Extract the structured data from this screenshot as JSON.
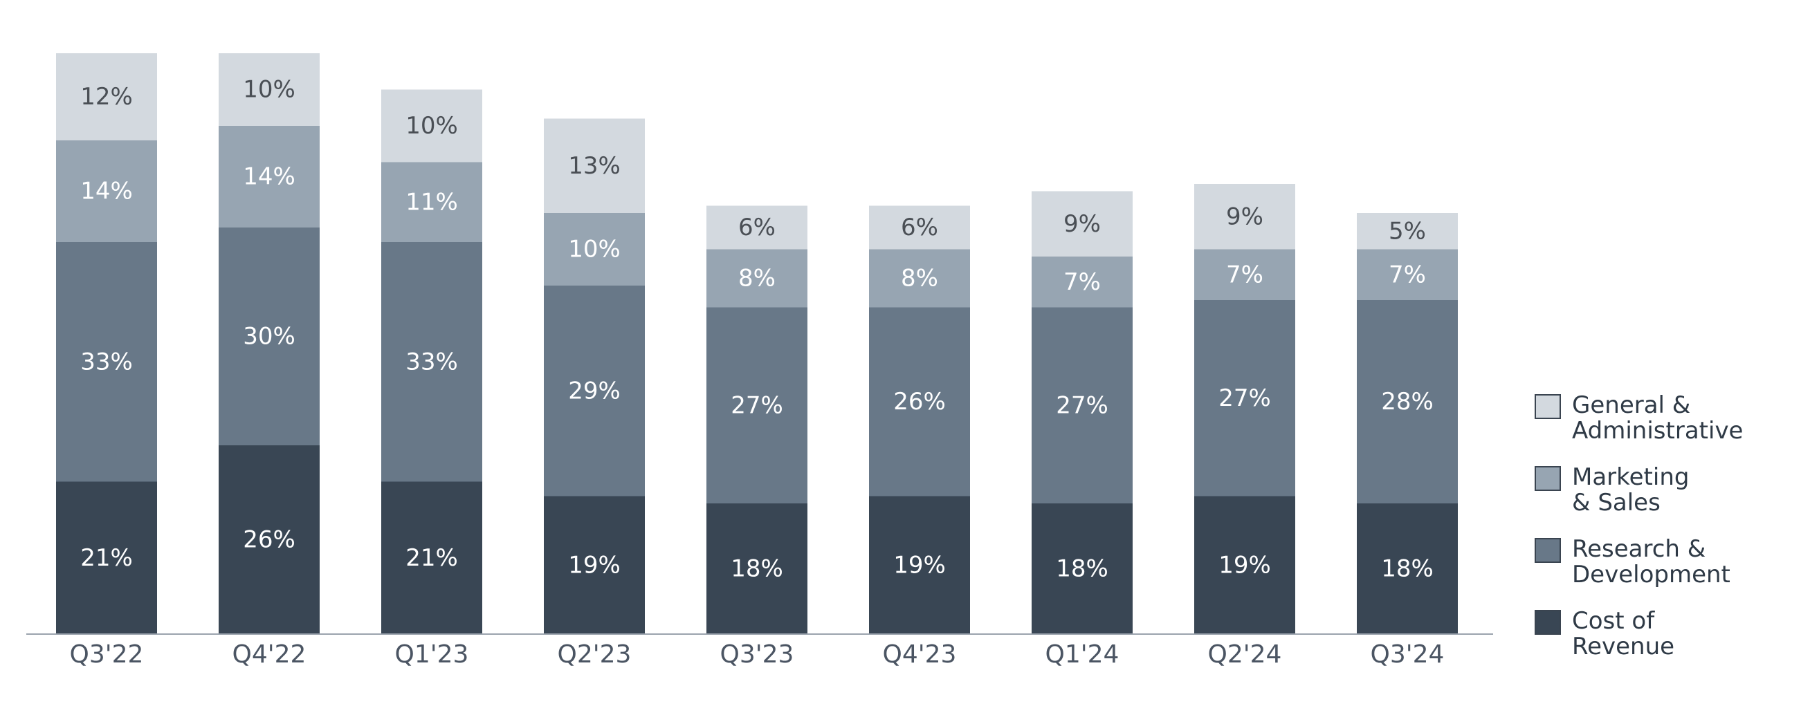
{
  "chart_data": {
    "type": "bar",
    "stacked": true,
    "categories": [
      "Q3'22",
      "Q4'22",
      "Q1'23",
      "Q2'23",
      "Q3'23",
      "Q4'23",
      "Q1'24",
      "Q2'24",
      "Q3'24"
    ],
    "series": [
      {
        "name": "Cost of Revenue",
        "values": [
          21,
          26,
          21,
          19,
          18,
          19,
          18,
          19,
          18
        ],
        "labels": [
          "21%",
          "26%",
          "21%",
          "19%",
          "18%",
          "19%",
          "18%",
          "19%",
          "18%"
        ],
        "color": "#394654",
        "text_color": "#ffffff"
      },
      {
        "name": "Research & Development",
        "values": [
          33,
          30,
          33,
          29,
          27,
          26,
          27,
          27,
          28
        ],
        "labels": [
          "33%",
          "30%",
          "33%",
          "29%",
          "27%",
          "26%",
          "27%",
          "27%",
          "28%"
        ],
        "color": "#687888",
        "text_color": "#ffffff"
      },
      {
        "name": "Marketing & Sales",
        "values": [
          14,
          14,
          11,
          10,
          8,
          8,
          7,
          7,
          7
        ],
        "labels": [
          "14%",
          "14%",
          "11%",
          "10%",
          "8%",
          "8%",
          "7%",
          "7%",
          "7%"
        ],
        "color": "#97a5b2",
        "text_color": "#ffffff"
      },
      {
        "name": "General & Administrative",
        "values": [
          12,
          10,
          10,
          13,
          6,
          6,
          9,
          9,
          5
        ],
        "labels": [
          "12%",
          "10%",
          "10%",
          "13%",
          "6%",
          "6%",
          "9%",
          "9%",
          "5%"
        ],
        "color": "#d3d9df",
        "text_color": "#4a4f55"
      }
    ],
    "legend": {
      "position": "right",
      "order": [
        "General & Administrative",
        "Marketing & Sales",
        "Research & Development",
        "Cost of Revenue"
      ],
      "lines": [
        "General &\nAdministrative",
        "Marketing\n& Sales",
        "Research &\nDevelopment",
        "Cost of\nRevenue"
      ],
      "colors": [
        "#d3d9df",
        "#97a5b2",
        "#687888",
        "#394654"
      ]
    },
    "grid": false,
    "ylim": [
      0,
      80
    ],
    "title": "",
    "xlabel": "",
    "ylabel": ""
  }
}
